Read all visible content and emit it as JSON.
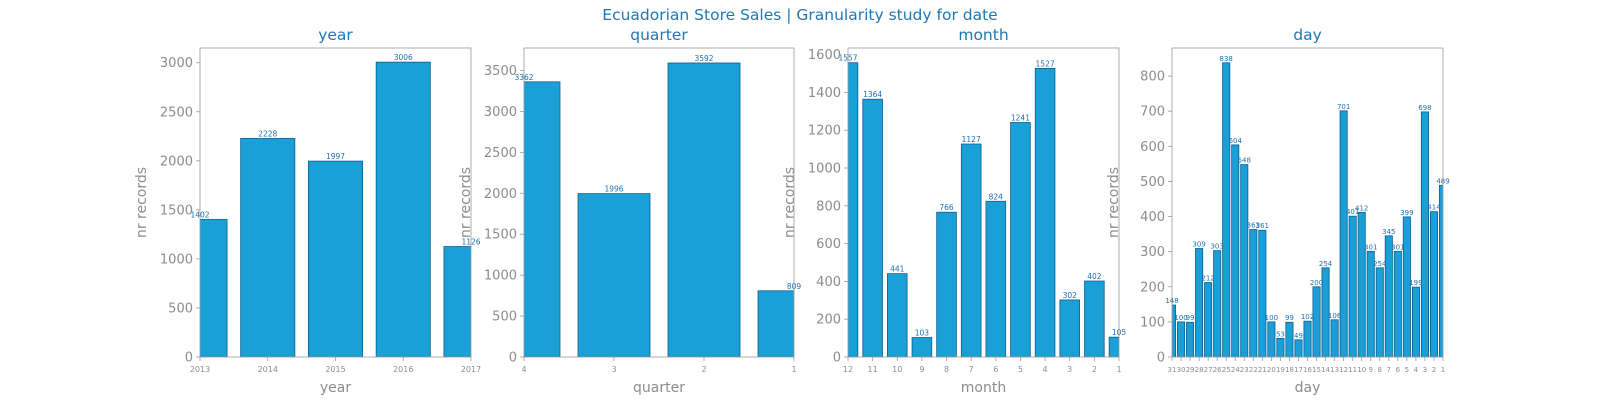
{
  "figure": {
    "suptitle": "Ecuadorian Store Sales | Granularity study for date",
    "colors": {
      "title": "#1f77b4",
      "bar_fill": "#1a9fd6",
      "bar_edge": "#0d5f8f",
      "data_label": "#1f6fb0",
      "axis_text": "#8c8c8c",
      "spine": "#999999"
    }
  },
  "chart_data": [
    {
      "type": "bar",
      "title": "year",
      "xlabel": "year",
      "ylabel": "nr records",
      "categories": [
        "2013",
        "2014",
        "2015",
        "2016",
        "2017"
      ],
      "values": [
        1402,
        2228,
        1997,
        3006,
        1126
      ],
      "ylim": [
        0,
        3150
      ],
      "yticks": [
        0,
        500,
        1000,
        1500,
        2000,
        2500,
        3000
      ],
      "grid": false
    },
    {
      "type": "bar",
      "title": "quarter",
      "xlabel": "quarter",
      "ylabel": "nr records",
      "categories": [
        "4",
        "3",
        "2",
        "1"
      ],
      "values": [
        3362,
        1996,
        3592,
        809
      ],
      "ylim": [
        0,
        3775
      ],
      "yticks": [
        0,
        500,
        1000,
        1500,
        2000,
        2500,
        3000,
        3500
      ],
      "grid": false
    },
    {
      "type": "bar",
      "title": "month",
      "xlabel": "month",
      "ylabel": "nr records",
      "categories": [
        "12",
        "11",
        "10",
        "9",
        "8",
        "7",
        "6",
        "5",
        "4",
        "3",
        "2",
        "1"
      ],
      "values": [
        1557,
        1364,
        441,
        103,
        766,
        1127,
        824,
        1241,
        1527,
        302,
        402,
        105
      ],
      "ylim": [
        0,
        1635
      ],
      "yticks": [
        0,
        200,
        400,
        600,
        800,
        1000,
        1200,
        1400,
        1600
      ],
      "grid": false
    },
    {
      "type": "bar",
      "title": "day",
      "xlabel": "day",
      "ylabel": "nr records",
      "categories": [
        "31",
        "30",
        "29",
        "28",
        "27",
        "26",
        "25",
        "24",
        "23",
        "22",
        "21",
        "20",
        "19",
        "18",
        "17",
        "16",
        "15",
        "14",
        "13",
        "12",
        "11",
        "10",
        "9",
        "8",
        "7",
        "6",
        "5",
        "4",
        "3",
        "2",
        "1"
      ],
      "values": [
        148,
        100,
        99,
        309,
        212,
        303,
        838,
        604,
        548,
        363,
        361,
        100,
        53,
        99,
        49,
        102,
        200,
        254,
        106,
        701,
        401,
        412,
        301,
        254,
        345,
        301,
        399,
        199,
        698,
        414,
        489
      ],
      "ylim": [
        0,
        880
      ],
      "yticks": [
        0,
        100,
        200,
        300,
        400,
        500,
        600,
        700,
        800
      ],
      "grid": false
    }
  ]
}
